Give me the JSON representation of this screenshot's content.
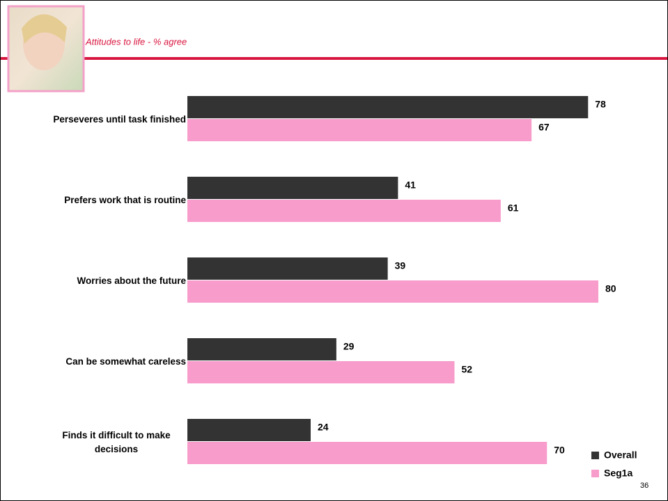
{
  "chart_data": {
    "type": "hbar",
    "title": "Attitudes to life - % agree",
    "categories": [
      "Perseveres until task finished",
      "Prefers work that is routine",
      "Worries about the future",
      "Can be somewhat careless",
      "Finds it difficult to make decisions"
    ],
    "series": [
      {
        "name": "Overall",
        "color": "#333333",
        "values": [
          78,
          41,
          39,
          29,
          24
        ]
      },
      {
        "name": "Seg1a",
        "color": "#f79ccb",
        "values": [
          67,
          61,
          80,
          52,
          70
        ]
      }
    ],
    "xlim": [
      0,
      80
    ],
    "legend": "bottom-right"
  },
  "page_number": "36"
}
